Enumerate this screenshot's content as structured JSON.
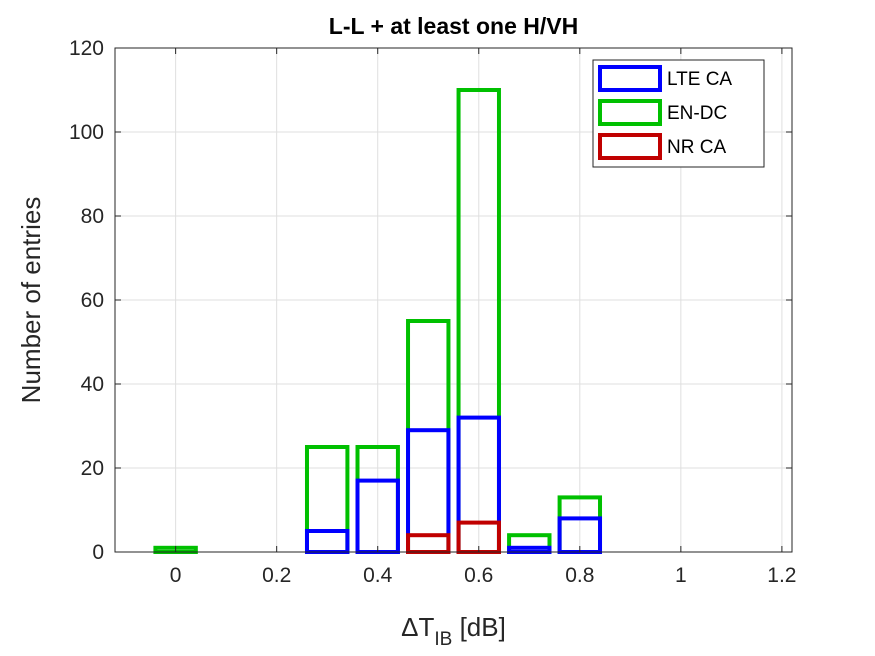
{
  "chart_data": {
    "type": "bar",
    "title": "L-L + at least one H/VH",
    "xlabel": {
      "prefix": "ΔT",
      "sub": "IB",
      "suffix": " [dB]"
    },
    "ylabel": "Number of entries",
    "x": [
      0,
      0.1,
      0.2,
      0.3,
      0.4,
      0.5,
      0.6,
      0.7,
      0.8,
      0.9,
      1.0,
      1.1
    ],
    "xlim": [
      -0.12,
      1.22
    ],
    "ylim": [
      0,
      120
    ],
    "xticks": [
      0,
      0.2,
      0.4,
      0.6,
      0.8,
      1,
      1.2
    ],
    "xtick_labels": [
      "0",
      "0.2",
      "0.4",
      "0.6",
      "0.8",
      "1",
      "1.2"
    ],
    "yticks": [
      0,
      20,
      40,
      60,
      80,
      100,
      120
    ],
    "ytick_labels": [
      "0",
      "20",
      "40",
      "60",
      "80",
      "100",
      "120"
    ],
    "grid": true,
    "legend_position": "top-right",
    "series": [
      {
        "name": "LTE CA",
        "color": "#0000ff",
        "values": [
          0,
          0,
          0,
          5,
          17,
          29,
          32,
          1,
          8,
          0,
          0,
          0
        ]
      },
      {
        "name": "EN-DC",
        "color": "#00c000",
        "values": [
          1,
          0,
          0,
          25,
          25,
          55,
          110,
          4,
          13,
          0,
          0,
          0
        ]
      },
      {
        "name": "NR CA",
        "color": "#c00000",
        "values": [
          0,
          0,
          0,
          0,
          0,
          4,
          7,
          0,
          0,
          0,
          0,
          0
        ]
      }
    ]
  }
}
